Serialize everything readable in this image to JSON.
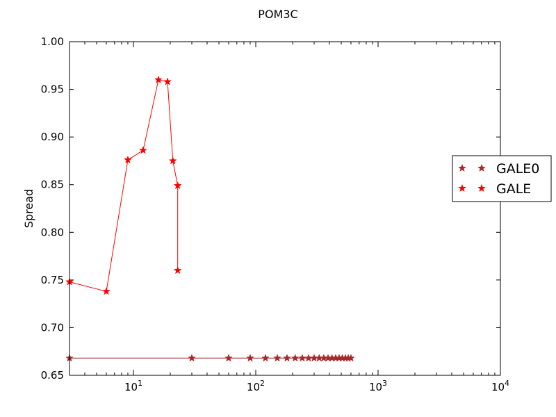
{
  "chart_data": {
    "type": "line",
    "title": "POM3C",
    "xlabel": "",
    "ylabel": "Spread",
    "xscale": "log",
    "xlim": [
      3,
      10000
    ],
    "ylim": [
      0.65,
      1.0
    ],
    "x_tick_labels": [
      "10",
      "10",
      "10",
      "10"
    ],
    "x_tick_exponents": [
      "1",
      "2",
      "3",
      "4"
    ],
    "x_tick_values": [
      10,
      100,
      1000,
      10000
    ],
    "y_ticks": [
      0.65,
      0.7,
      0.75,
      0.8,
      0.85,
      0.9,
      0.95,
      1.0
    ],
    "y_tick_labels": [
      "0.65",
      "0.70",
      "0.75",
      "0.80",
      "0.85",
      "0.90",
      "0.95",
      "1.00"
    ],
    "grid": false,
    "legend_position": "right",
    "series": [
      {
        "name": "GALE0",
        "color": "#a52a2a",
        "marker": "star",
        "x": [
          3,
          30,
          60,
          90,
          120,
          150,
          180,
          210,
          240,
          270,
          300,
          330,
          360,
          390,
          420,
          450,
          480,
          510,
          540,
          570,
          600
        ],
        "y": [
          0.668,
          0.668,
          0.668,
          0.668,
          0.668,
          0.668,
          0.668,
          0.668,
          0.668,
          0.668,
          0.668,
          0.668,
          0.668,
          0.668,
          0.668,
          0.668,
          0.668,
          0.668,
          0.668,
          0.668,
          0.668
        ]
      },
      {
        "name": "GALE",
        "color": "#ff0000",
        "marker": "star",
        "x": [
          3,
          6,
          9,
          12,
          16,
          19,
          21,
          23,
          23
        ],
        "y": [
          0.748,
          0.738,
          0.876,
          0.886,
          0.96,
          0.958,
          0.875,
          0.849,
          0.76
        ]
      }
    ]
  }
}
